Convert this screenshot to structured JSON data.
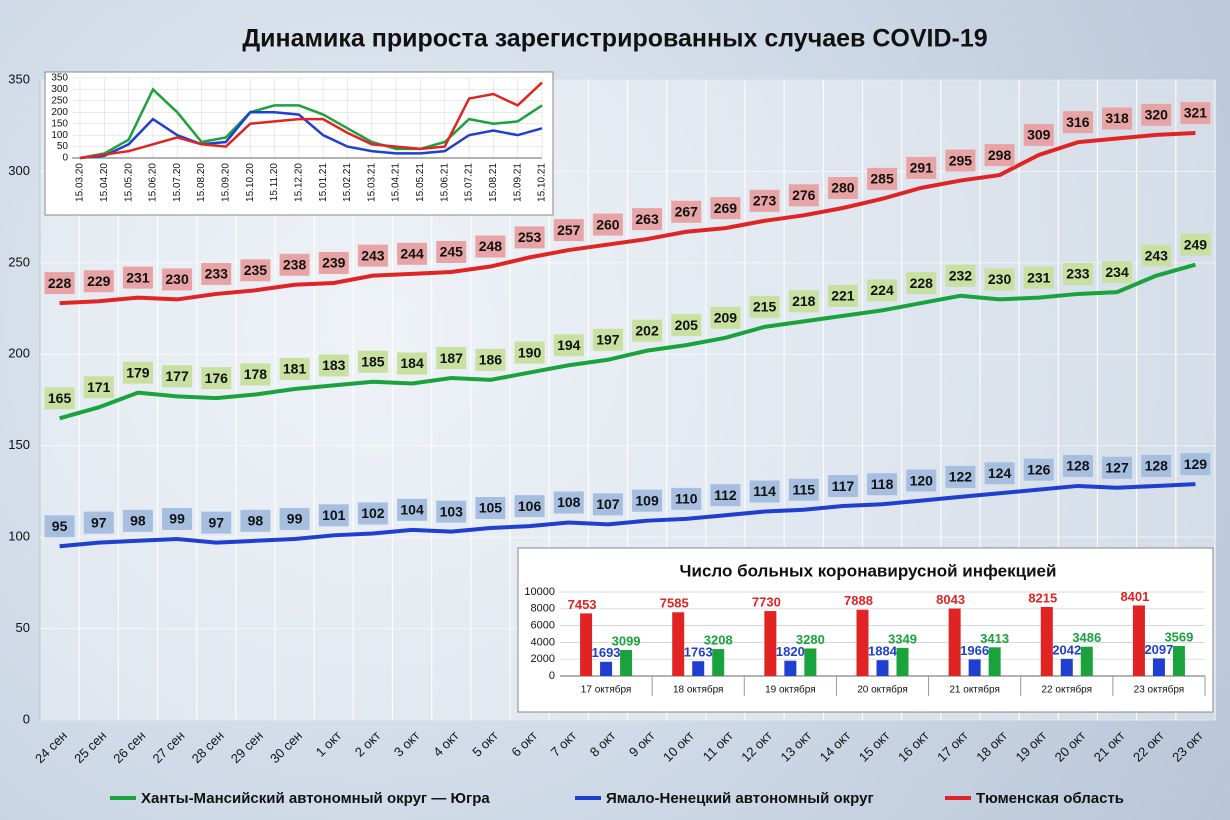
{
  "chart_data": [
    {
      "type": "line",
      "title": "Динамика прироста зарегистрированных случаев COVID-19",
      "categories": [
        "24 сен",
        "25 сен",
        "26 сен",
        "27 сен",
        "28 сен",
        "29 сен",
        "30 сен",
        "1 окт",
        "2 окт",
        "3 окт",
        "4 окт",
        "5 окт",
        "6 окт",
        "7 окт",
        "8 окт",
        "9 окт",
        "10 окт",
        "11 окт",
        "12 окт",
        "13 окт",
        "14 окт",
        "15 окт",
        "16 окт",
        "17 окт",
        "18 окт",
        "19 окт",
        "20 окт",
        "21 окт",
        "22 окт",
        "23 окт"
      ],
      "series": [
        {
          "name": "Ханты-Мансийский автономный округ — Югра",
          "color": "#1aa33c",
          "label_color": "#c8e0a0",
          "values": [
            165,
            171,
            179,
            177,
            176,
            178,
            181,
            183,
            185,
            184,
            187,
            186,
            190,
            194,
            197,
            202,
            205,
            209,
            215,
            218,
            221,
            224,
            228,
            232,
            230,
            231,
            233,
            234,
            243,
            249
          ]
        },
        {
          "name": "Ямало-Ненецкий автономный округ",
          "color": "#1f3fd0",
          "label_color": "#a6bfe0",
          "values": [
            95,
            97,
            98,
            99,
            97,
            98,
            99,
            101,
            102,
            104,
            103,
            105,
            106,
            108,
            107,
            109,
            110,
            112,
            114,
            115,
            117,
            118,
            120,
            122,
            124,
            126,
            128,
            127,
            128,
            129
          ]
        },
        {
          "name": "Тюменская область",
          "color": "#e02424",
          "label_color": "#e8a4a4",
          "values": [
            228,
            229,
            231,
            230,
            233,
            235,
            238,
            239,
            243,
            244,
            245,
            248,
            253,
            257,
            260,
            263,
            267,
            269,
            273,
            276,
            280,
            285,
            291,
            295,
            298,
            309,
            316,
            318,
            320,
            321
          ]
        }
      ],
      "ylim": [
        0,
        350
      ],
      "yticks": [
        0,
        50,
        100,
        150,
        200,
        250,
        300,
        350
      ],
      "grid": true,
      "legend": "bottom"
    },
    {
      "type": "line",
      "categories": [
        "15.03.20",
        "15.04.20",
        "15.05.20",
        "15.06.20",
        "15.07.20",
        "15.08.20",
        "15.09.20",
        "15.10.20",
        "15.11.20",
        "15.12.20",
        "15.01.21",
        "15.02.21",
        "15.03.21",
        "15.04.21",
        "15.05.21",
        "15.06.21",
        "15.07.21",
        "15.08.21",
        "15.09.21",
        "15.10.21"
      ],
      "series": [
        {
          "color": "#1aa33c",
          "values": [
            0,
            20,
            80,
            300,
            200,
            70,
            90,
            200,
            230,
            230,
            190,
            130,
            70,
            40,
            40,
            70,
            170,
            150,
            160,
            230
          ]
        },
        {
          "color": "#1f3fd0",
          "values": [
            0,
            10,
            60,
            170,
            100,
            60,
            70,
            200,
            200,
            190,
            100,
            50,
            30,
            20,
            20,
            30,
            100,
            120,
            100,
            130
          ]
        },
        {
          "color": "#e02424",
          "values": [
            0,
            15,
            30,
            60,
            90,
            60,
            50,
            150,
            160,
            170,
            170,
            110,
            60,
            50,
            40,
            50,
            260,
            280,
            230,
            330
          ]
        }
      ],
      "ylim": [
        0,
        350
      ],
      "yticks": [
        0,
        50,
        100,
        150,
        200,
        250,
        300,
        350
      ],
      "grid": true
    },
    {
      "type": "bar",
      "title": "Число больных коронавирусной инфекцией",
      "categories": [
        "17 октября",
        "18 октября",
        "19 октября",
        "20 октября",
        "21 октября",
        "22 октября",
        "23 октября"
      ],
      "series": [
        {
          "color": "#e02424",
          "values": [
            7453,
            7585,
            7730,
            7888,
            8043,
            8215,
            8401
          ]
        },
        {
          "color": "#1f3fd0",
          "values": [
            1693,
            1763,
            1820,
            1884,
            1966,
            2042,
            2097
          ]
        },
        {
          "color": "#1aa33c",
          "values": [
            3099,
            3208,
            3280,
            3349,
            3413,
            3486,
            3569
          ]
        }
      ],
      "ylim": [
        0,
        10000
      ],
      "yticks": [
        0,
        2000,
        4000,
        6000,
        8000,
        10000
      ],
      "grid": true
    }
  ]
}
